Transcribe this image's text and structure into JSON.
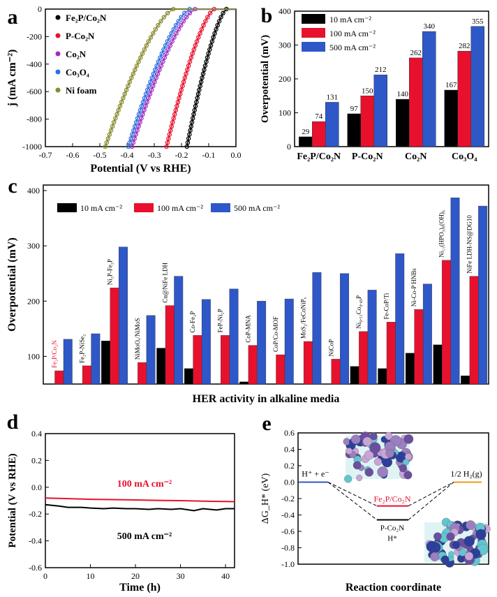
{
  "chart_data": [
    {
      "type": "line",
      "panel_label": "a",
      "xlabel": "Potential (V vs RHE)",
      "ylabel": "j (mA cm⁻²)",
      "xlim": [
        -0.7,
        0.0
      ],
      "ylim": [
        -1000,
        0
      ],
      "xticks": [
        "-0.7",
        "-0.6",
        "-0.5",
        "-0.4",
        "-0.3",
        "-0.2",
        "-0.1",
        "0.0"
      ],
      "yticks": [
        "0",
        "-200",
        "-400",
        "-600",
        "-800",
        "-1000"
      ],
      "legend_placement": "top-left",
      "series": [
        {
          "name": "Fe₂P/Co₂N",
          "color": "#000000",
          "onset": -0.035,
          "end": -0.18
        },
        {
          "name": "P-Co₂N",
          "color": "#e8112d",
          "onset": -0.08,
          "end": -0.255
        },
        {
          "name": "Co₂N",
          "color": "#a02cc0",
          "onset": -0.15,
          "end": -0.382
        },
        {
          "name": "Co₃O₄",
          "color": "#2e6fe0",
          "onset": -0.17,
          "end": -0.395
        },
        {
          "name": "Ni foam",
          "color": "#8a8a2e",
          "onset": -0.23,
          "end": -0.48
        }
      ]
    },
    {
      "type": "bar",
      "panel_label": "b",
      "ylabel": "Overpotential (mV)",
      "ylim": [
        0,
        400
      ],
      "yticks": [
        "0",
        "100",
        "200",
        "300",
        "400"
      ],
      "categories": [
        "Fe₂P/Co₂N",
        "P-Co₂N",
        "Co₂N",
        "Co₃O₄"
      ],
      "legend_placement": "top-left",
      "series": [
        {
          "name": "10 mA cm⁻²",
          "color": "#000000",
          "values": [
            29,
            97,
            140,
            167
          ]
        },
        {
          "name": "100 mA cm⁻²",
          "color": "#e8112d",
          "values": [
            74,
            150,
            262,
            282
          ]
        },
        {
          "name": "500 mA cm⁻²",
          "color": "#2e57c8",
          "values": [
            131,
            212,
            340,
            355
          ]
        }
      ],
      "data_labels": [
        [
          "29",
          "97",
          "140",
          "167"
        ],
        [
          "74",
          "150",
          "262",
          "282"
        ],
        [
          "131",
          "212",
          "340",
          "355"
        ]
      ]
    },
    {
      "type": "bar",
      "panel_label": "c",
      "ylabel": "Overpotential (mV)",
      "xlabel": "HER activity in alkaline media",
      "ylim": [
        50,
        410
      ],
      "yticks": [
        "100",
        "200",
        "300",
        "400"
      ],
      "legend_placement": "top-left",
      "categories": [
        "Fe₂P/Co₂N",
        "Fe₂P-NiSe₂",
        "Ni₂P-Fe₂P",
        "NiMoOₓ/NiMoS",
        "Cu@NiFe LDH",
        "Co-Fe₂P",
        "FeP-Ni₂P",
        "CoP-MNA",
        "CoP/Co-MOF",
        "MoS₂/FeCoNiPₓ",
        "NiCoP",
        "Ni₀.₅₁Co₀.₄₉P",
        "Fe-CoP/Ti",
        "Ni-Co-P HNBs",
        "Ni₁₁(HPO₃)₈(OH)₆",
        "NiFe LDH-NS@DG10"
      ],
      "highlight_color": "#e8112d",
      "series": [
        {
          "name": "10 mA cm⁻²",
          "color": "#000000",
          "values": [
            29,
            35,
            128,
            38,
            115,
            78,
            null,
            54,
            34,
            43,
            32,
            82,
            78,
            106,
            121,
            65
          ]
        },
        {
          "name": "100 mA cm⁻²",
          "color": "#e8112d",
          "values": [
            74,
            83,
            224,
            89,
            192,
            138,
            138,
            120,
            103,
            127,
            95,
            145,
            162,
            185,
            274,
            245
          ]
        },
        {
          "name": "500 mA cm⁻²",
          "color": "#2e57c8",
          "values": [
            131,
            141,
            298,
            174,
            245,
            203,
            222,
            200,
            204,
            252,
            250,
            220,
            286,
            231,
            387,
            372
          ]
        }
      ]
    },
    {
      "type": "line",
      "panel_label": "d",
      "xlabel": "Time (h)",
      "ylabel": "Potential (V vs RHE)",
      "xlim": [
        0,
        42
      ],
      "ylim": [
        -0.6,
        0.4
      ],
      "xticks": [
        "0",
        "10",
        "20",
        "30",
        "40"
      ],
      "yticks": [
        "0.4",
        "0.2",
        "0.0",
        "-0.2",
        "-0.4",
        "-0.6"
      ],
      "series": [
        {
          "name": "100 mA cm⁻²",
          "color": "#e8112d",
          "x": [
            0,
            5,
            10,
            15,
            20,
            25,
            30,
            35,
            40,
            42
          ],
          "values": [
            -0.08,
            -0.085,
            -0.09,
            -0.092,
            -0.095,
            -0.098,
            -0.1,
            -0.104,
            -0.107,
            -0.108
          ]
        },
        {
          "name": "500 mA cm⁻²",
          "color": "#000000",
          "x": [
            0,
            3,
            5,
            8,
            10,
            13,
            15,
            18,
            20,
            23,
            25,
            28,
            30,
            33,
            35,
            38,
            40,
            42
          ],
          "values": [
            -0.13,
            -0.14,
            -0.15,
            -0.15,
            -0.155,
            -0.16,
            -0.155,
            -0.16,
            -0.16,
            -0.165,
            -0.16,
            -0.165,
            -0.16,
            -0.175,
            -0.16,
            -0.17,
            -0.16,
            -0.16
          ]
        }
      ]
    },
    {
      "type": "line",
      "panel_label": "e",
      "xlabel": "Reaction coordinate",
      "ylabel": "ΔG_H* (eV)",
      "ylim": [
        -1.0,
        0.6
      ],
      "yticks": [
        "0.6",
        "0.4",
        "0.2",
        "0.0",
        "-0.2",
        "-0.4",
        "-0.6",
        "-0.8",
        "-1.0"
      ],
      "states": [
        "H⁺ + e⁻",
        "H*",
        "1/2 H₂(g)"
      ],
      "series": [
        {
          "name": "Fe₂P/Co₂N",
          "color": "#e8112d",
          "values": [
            0.0,
            -0.29,
            0.0
          ]
        },
        {
          "name": "P-Co₂N",
          "color": "#000000",
          "values": [
            0.0,
            -0.46,
            0.0
          ]
        }
      ],
      "level_colors": {
        "initial": "#2e57c8",
        "final": "#f09a1e"
      },
      "inset_palette": [
        "#9b7fc0",
        "#6a4fa0",
        "#62c6d1",
        "#2c3f9a",
        "#c9a4d8"
      ]
    }
  ]
}
